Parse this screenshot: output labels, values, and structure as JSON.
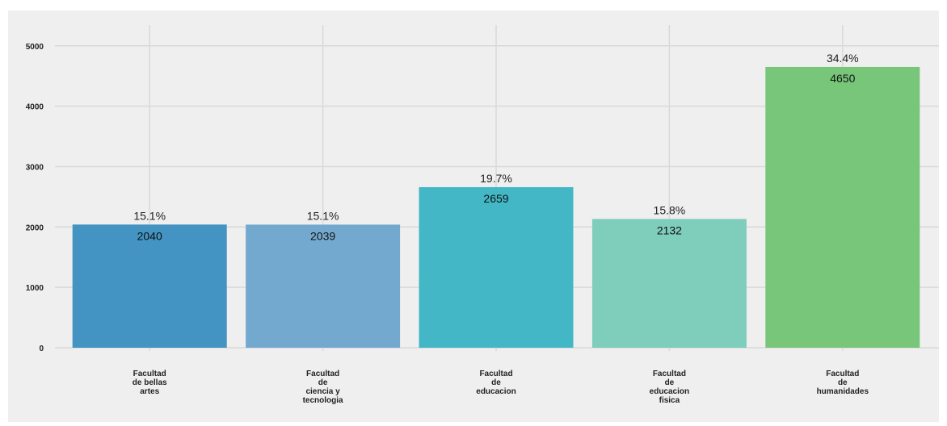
{
  "chart_data": {
    "type": "bar",
    "categories": [
      [
        "Facultad",
        "de bellas",
        "artes"
      ],
      [
        "Facultad",
        "de",
        "ciencia y",
        "tecnologia"
      ],
      [
        "Facultad",
        "de",
        "educacion"
      ],
      [
        "Facultad",
        "de",
        "educacion",
        "fisica"
      ],
      [
        "Facultad",
        "de",
        "humanidades"
      ]
    ],
    "values": [
      2040,
      2039,
      2659,
      2132,
      4650
    ],
    "value_labels": [
      "2040",
      "2039",
      "2659",
      "2132",
      "4650"
    ],
    "percent_labels": [
      "15.1%",
      "15.1%",
      "19.7%",
      "15.8%",
      "34.4%"
    ],
    "colors": [
      "#4393c3",
      "#74a9cf",
      "#43b7c6",
      "#7fcdbb",
      "#78c679"
    ],
    "ylim": [
      0,
      5300
    ],
    "yticks": [
      0,
      1000,
      2000,
      3000,
      4000,
      5000
    ],
    "grid": true,
    "background": "#efefef",
    "title": "",
    "xlabel": "",
    "ylabel": ""
  }
}
